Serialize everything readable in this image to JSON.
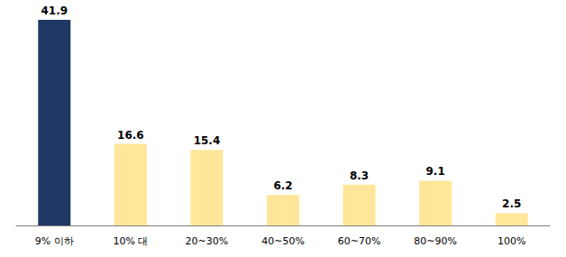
{
  "chart_data": {
    "type": "bar",
    "categories": [
      "9% 이하",
      "10% 대",
      "20~30%",
      "40~50%",
      "60~70%",
      "80~90%",
      "100%"
    ],
    "values": [
      41.9,
      16.6,
      15.4,
      6.2,
      8.3,
      9.1,
      2.5
    ],
    "colors": [
      "#1f3864",
      "#ffe699",
      "#ffe699",
      "#ffe699",
      "#ffe699",
      "#ffe699",
      "#ffe699"
    ],
    "ylim": [
      0,
      45
    ],
    "grid": false,
    "data_labels": true,
    "tick_labels": "x"
  }
}
